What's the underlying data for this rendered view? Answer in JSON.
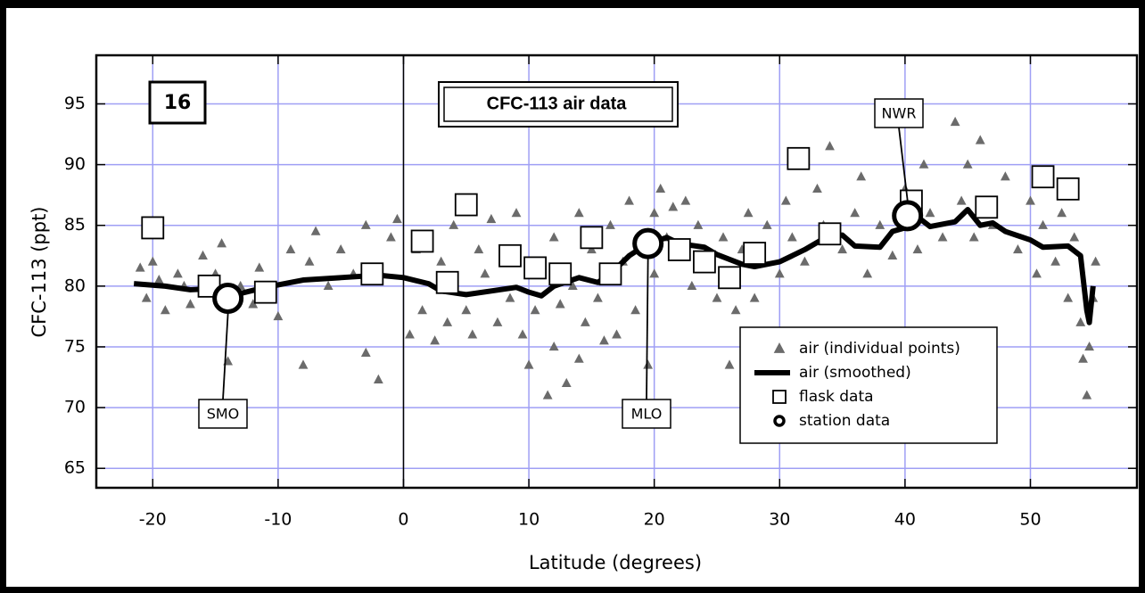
{
  "chart_data": {
    "type": "scatter",
    "xlabel": "Latitude   (degrees)",
    "ylabel": "CFC-113   (ppt)",
    "panel_label": "16",
    "title": "CFC-113 air data",
    "xlim": [
      -24.5,
      58.5
    ],
    "ylim": [
      63.4,
      99
    ],
    "xticks": [
      -20,
      -10,
      0,
      10,
      20,
      30,
      40,
      50
    ],
    "yticks": [
      65,
      70,
      75,
      80,
      85,
      90,
      95
    ],
    "grid": true,
    "grid_color": "#9f9ff5",
    "zero_line": 0,
    "legend": "lower right",
    "series": [
      {
        "name": "air (individual points)",
        "kind": "triangle",
        "color": "#6b6b6b",
        "x": [
          -21,
          -20.5,
          -20,
          -19.5,
          -19,
          -18,
          -17.5,
          -17,
          -16,
          -15,
          -14.5,
          -14,
          -13,
          -12,
          -11.5,
          -10,
          -9,
          -8,
          -7.5,
          -7,
          -6,
          -5,
          -4,
          -3,
          -3,
          -2,
          -1,
          -0.5,
          0.5,
          1,
          1.5,
          2,
          2.5,
          3,
          3.5,
          4,
          5,
          5.5,
          6,
          6.5,
          7,
          7.5,
          8,
          8.5,
          9,
          9.5,
          10,
          10,
          10.5,
          11,
          11.5,
          12,
          12,
          12.5,
          13,
          13.5,
          14,
          14,
          14.5,
          15,
          15.5,
          16,
          16.5,
          17,
          17.5,
          18,
          18.5,
          19,
          19.5,
          20,
          20,
          20.5,
          21,
          21.5,
          22,
          22.5,
          23,
          23.5,
          24,
          25,
          25.5,
          26,
          26.5,
          27,
          27.5,
          28,
          29,
          30,
          30.5,
          31,
          32,
          33,
          33.5,
          34,
          35,
          36,
          36.5,
          37,
          38,
          39,
          40,
          41,
          41.5,
          42,
          43,
          44,
          44.5,
          45,
          45.5,
          46,
          47,
          48,
          49,
          50,
          50.5,
          51,
          52,
          52.5,
          53,
          53.5,
          54,
          54.2,
          54.5,
          54.7,
          55,
          55.2
        ],
        "values": [
          81.5,
          79,
          82,
          80.5,
          78,
          81,
          80,
          78.5,
          82.5,
          81,
          83.5,
          73.8,
          80,
          78.5,
          81.5,
          77.5,
          83,
          73.5,
          82,
          84.5,
          80,
          83,
          81,
          74.5,
          85,
          72.3,
          84,
          85.5,
          76,
          83,
          78,
          84,
          75.5,
          82,
          77,
          85,
          78,
          76,
          83,
          81,
          85.5,
          77,
          83,
          79,
          86,
          76,
          73.5,
          81,
          78,
          82,
          71,
          84,
          75,
          78.5,
          72,
          80,
          86,
          74,
          77,
          83,
          79,
          75.5,
          85,
          76,
          82,
          87,
          78,
          84,
          73.5,
          86,
          81,
          88,
          84,
          86.5,
          83,
          87,
          80,
          85,
          82,
          79,
          84,
          73.5,
          78,
          83,
          86,
          79,
          85,
          81,
          87,
          84,
          82,
          88,
          85,
          91.5,
          83,
          86,
          89,
          81,
          85,
          82.5,
          88,
          83,
          90,
          86,
          84,
          93.5,
          87,
          90,
          84,
          92,
          85,
          89,
          83,
          87,
          81,
          85,
          82,
          86,
          79,
          84,
          77,
          74,
          71,
          75,
          79,
          82
        ]
      },
      {
        "name": "air (smoothed)",
        "kind": "line",
        "color": "#000000",
        "x": [
          -21.5,
          -19,
          -17,
          -15,
          -13,
          -11,
          -8,
          -5,
          -2,
          0,
          2,
          3,
          5,
          7,
          9,
          10,
          11,
          12,
          14,
          15.5,
          16.5,
          18,
          19.5,
          21,
          22,
          24,
          25,
          27,
          28,
          30,
          32,
          34,
          35,
          36,
          38,
          39,
          40,
          41,
          42,
          44,
          45,
          46,
          47,
          48,
          50,
          51,
          53,
          54,
          54.5,
          54.7,
          55
        ],
        "values": [
          80.2,
          80,
          79.7,
          79.8,
          79.4,
          79.9,
          80.5,
          80.7,
          80.9,
          80.7,
          80.2,
          79.6,
          79.3,
          79.6,
          79.9,
          79.5,
          79.2,
          80,
          80.7,
          80.3,
          81,
          82.5,
          83.5,
          84,
          83.5,
          83.2,
          82.6,
          81.8,
          81.6,
          82,
          83,
          84.2,
          84.2,
          83.3,
          83.2,
          84.5,
          84.8,
          85.7,
          84.9,
          85.3,
          86.3,
          85,
          85.2,
          84.5,
          83.8,
          83.2,
          83.3,
          82.5,
          78,
          77,
          80
        ]
      },
      {
        "name": "flask data",
        "kind": "square",
        "color": "#000000",
        "x": [
          -20,
          -15.5,
          -11,
          -2.5,
          1.5,
          3.5,
          5,
          8.5,
          10.5,
          12.5,
          15,
          16.5,
          22,
          24,
          26,
          28,
          31.5,
          34,
          40.5,
          46.5,
          51,
          53
        ],
        "values": [
          84.8,
          80,
          79.5,
          81,
          83.7,
          80.3,
          86.7,
          82.5,
          81.5,
          81,
          84,
          81,
          83,
          82,
          80.7,
          82.7,
          90.5,
          84.3,
          87,
          86.5,
          89,
          88
        ]
      },
      {
        "name": "station data",
        "kind": "circle",
        "color": "#000000",
        "labels": [
          "SMO",
          "MLO",
          "NWR"
        ],
        "x": [
          -14,
          19.5,
          40.2
        ],
        "values": [
          79,
          83.5,
          85.8
        ]
      }
    ]
  }
}
